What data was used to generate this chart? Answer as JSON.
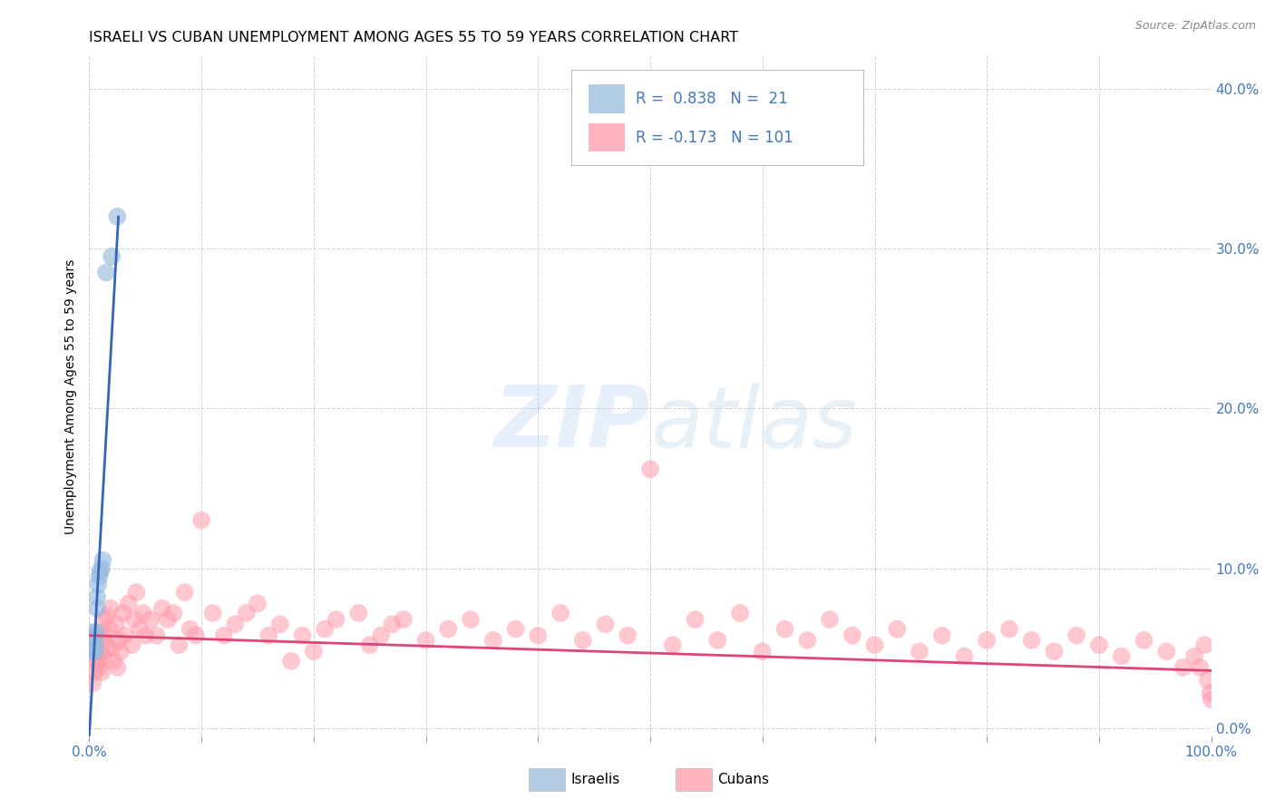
{
  "title": "ISRAELI VS CUBAN UNEMPLOYMENT AMONG AGES 55 TO 59 YEARS CORRELATION CHART",
  "source": "Source: ZipAtlas.com",
  "ylabel": "Unemployment Among Ages 55 to 59 years",
  "xlim": [
    0,
    1.0
  ],
  "ylim": [
    -0.005,
    0.42
  ],
  "xticks": [
    0.0,
    0.1,
    0.2,
    0.3,
    0.4,
    0.5,
    0.6,
    0.7,
    0.8,
    0.9,
    1.0
  ],
  "xticklabels_show": [
    "0.0%",
    "",
    "",
    "",
    "",
    "",
    "",
    "",
    "",
    "",
    "100.0%"
  ],
  "yticks": [
    0.0,
    0.1,
    0.2,
    0.3,
    0.4
  ],
  "yticklabels": [
    "0.0%",
    "10.0%",
    "20.0%",
    "30.0%",
    "40.0%"
  ],
  "israeli_color": "#99BBDD",
  "cuban_color": "#FF9AAA",
  "israeli_line_color": "#3366BB",
  "cuban_line_color": "#DD4477",
  "R_israeli": 0.838,
  "N_israeli": 21,
  "R_cuban": -0.173,
  "N_cuban": 101,
  "grid_color": "#CCCCCC",
  "watermark_zip": "ZIP",
  "watermark_atlas": "atlas",
  "background_color": "#FFFFFF",
  "axis_label_color": "#4477BB",
  "tick_color": "#999999",
  "legend_text_color": "#4477BB",
  "israeli_x": [
    0.001,
    0.002,
    0.003,
    0.003,
    0.003,
    0.004,
    0.004,
    0.005,
    0.005,
    0.005,
    0.006,
    0.007,
    0.007,
    0.008,
    0.009,
    0.01,
    0.011,
    0.012,
    0.015,
    0.02,
    0.025
  ],
  "israeli_y": [
    0.052,
    0.053,
    0.048,
    0.055,
    0.06,
    0.05,
    0.056,
    0.048,
    0.052,
    0.057,
    0.06,
    0.075,
    0.082,
    0.09,
    0.095,
    0.098,
    0.1,
    0.105,
    0.285,
    0.295,
    0.32
  ],
  "cuban_x": [
    0.004,
    0.006,
    0.007,
    0.008,
    0.009,
    0.01,
    0.011,
    0.012,
    0.013,
    0.014,
    0.015,
    0.016,
    0.018,
    0.019,
    0.02,
    0.022,
    0.024,
    0.026,
    0.028,
    0.03,
    0.032,
    0.035,
    0.038,
    0.04,
    0.042,
    0.045,
    0.048,
    0.05,
    0.055,
    0.06,
    0.065,
    0.07,
    0.075,
    0.08,
    0.085,
    0.09,
    0.095,
    0.1,
    0.11,
    0.12,
    0.13,
    0.14,
    0.15,
    0.16,
    0.17,
    0.18,
    0.19,
    0.2,
    0.21,
    0.22,
    0.24,
    0.25,
    0.26,
    0.27,
    0.28,
    0.3,
    0.32,
    0.34,
    0.36,
    0.38,
    0.4,
    0.42,
    0.44,
    0.46,
    0.48,
    0.5,
    0.52,
    0.54,
    0.56,
    0.58,
    0.6,
    0.62,
    0.64,
    0.66,
    0.68,
    0.7,
    0.72,
    0.74,
    0.76,
    0.78,
    0.8,
    0.82,
    0.84,
    0.86,
    0.88,
    0.9,
    0.92,
    0.94,
    0.96,
    0.975,
    0.985,
    0.99,
    0.994,
    0.997,
    0.999,
    1.0,
    0.003,
    0.005,
    0.007,
    0.01,
    0.025
  ],
  "cuban_y": [
    0.052,
    0.048,
    0.055,
    0.042,
    0.038,
    0.06,
    0.035,
    0.068,
    0.045,
    0.058,
    0.052,
    0.07,
    0.062,
    0.075,
    0.05,
    0.042,
    0.065,
    0.055,
    0.048,
    0.072,
    0.058,
    0.078,
    0.052,
    0.068,
    0.085,
    0.062,
    0.072,
    0.058,
    0.068,
    0.058,
    0.075,
    0.068,
    0.072,
    0.052,
    0.085,
    0.062,
    0.058,
    0.13,
    0.072,
    0.058,
    0.065,
    0.072,
    0.078,
    0.058,
    0.065,
    0.042,
    0.058,
    0.048,
    0.062,
    0.068,
    0.072,
    0.052,
    0.058,
    0.065,
    0.068,
    0.055,
    0.062,
    0.068,
    0.055,
    0.062,
    0.058,
    0.072,
    0.055,
    0.065,
    0.058,
    0.162,
    0.052,
    0.068,
    0.055,
    0.072,
    0.048,
    0.062,
    0.055,
    0.068,
    0.058,
    0.052,
    0.062,
    0.048,
    0.058,
    0.045,
    0.055,
    0.062,
    0.055,
    0.048,
    0.058,
    0.052,
    0.045,
    0.055,
    0.048,
    0.038,
    0.045,
    0.038,
    0.052,
    0.03,
    0.022,
    0.018,
    0.028,
    0.035,
    0.042,
    0.048,
    0.038
  ],
  "isr_trend_x": [
    0.0,
    0.026
  ],
  "isr_trend_slope": 12.5,
  "isr_trend_intercept": -0.005,
  "cub_trend_x_start": 0.0,
  "cub_trend_x_end": 1.0,
  "cub_trend_y_start": 0.058,
  "cub_trend_y_end": 0.036
}
